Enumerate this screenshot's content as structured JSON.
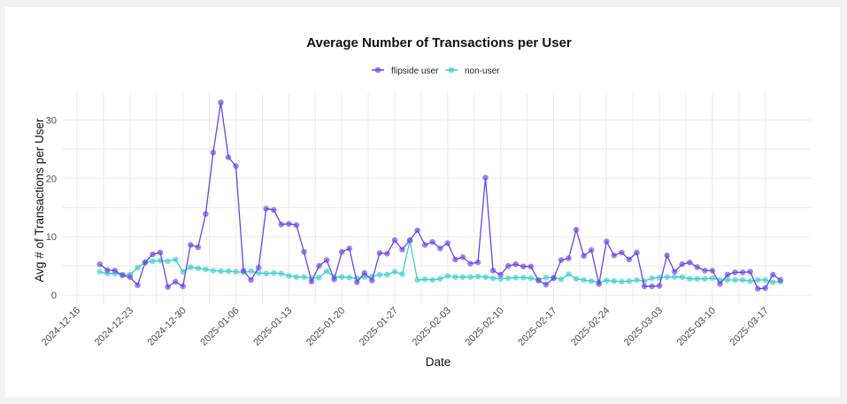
{
  "chart_data": {
    "type": "line",
    "title": "Average Number of Transactions per User",
    "xlabel": "Date",
    "ylabel": "Avg # of Transactions per User",
    "x_start": "2024-12-19",
    "x_step_days": 1,
    "xlim": [
      "2024-12-14",
      "2025-03-23"
    ],
    "ylim": [
      -1.5,
      34.6
    ],
    "grid": true,
    "legend_position": "top",
    "x_ticks": [
      "2024-12-16",
      "2024-12-23",
      "2024-12-30",
      "2025-01-06",
      "2025-01-13",
      "2025-01-20",
      "2025-01-27",
      "2025-02-03",
      "2025-02-10",
      "2025-02-17",
      "2025-02-24",
      "2025-03-03",
      "2025-03-10",
      "2025-03-17"
    ],
    "y_ticks": [
      "0",
      "10",
      "20",
      "30"
    ],
    "series": [
      {
        "name": "flipside user",
        "color": "#6c44e6",
        "values": [
          5.3,
          4.3,
          4.2,
          3.4,
          3.1,
          1.7,
          5.6,
          7.0,
          7.3,
          1.4,
          2.3,
          1.5,
          8.6,
          8.2,
          13.9,
          24.4,
          33.0,
          23.6,
          22.1,
          4.2,
          2.6,
          4.7,
          14.8,
          14.6,
          12.1,
          12.2,
          12.0,
          7.4,
          2.3,
          5.0,
          6.0,
          2.7,
          7.4,
          8.0,
          2.2,
          3.8,
          2.5,
          7.2,
          7.1,
          9.4,
          7.8,
          9.4,
          11.1,
          8.6,
          9.1,
          8.0,
          8.9,
          6.1,
          6.5,
          5.4,
          5.6,
          20.1,
          4.2,
          3.5,
          5.0,
          5.3,
          4.9,
          4.9,
          2.5,
          1.8,
          2.9,
          6.0,
          6.3,
          11.2,
          6.7,
          7.7,
          1.9,
          9.2,
          6.8,
          7.3,
          6.1,
          7.3,
          1.5,
          1.5,
          1.6,
          6.8,
          4.0,
          5.3,
          5.6,
          4.8,
          4.2,
          4.2,
          1.9,
          3.5,
          3.9,
          3.9,
          4.0,
          1.1,
          1.2,
          3.5,
          2.6
        ]
      },
      {
        "name": "non-user",
        "color": "#3ccfcf",
        "values": [
          4.0,
          3.7,
          3.7,
          3.5,
          3.5,
          4.7,
          5.6,
          5.8,
          5.9,
          5.8,
          6.1,
          4.0,
          4.8,
          4.6,
          4.4,
          4.2,
          4.1,
          4.1,
          4.0,
          3.9,
          4.1,
          3.8,
          3.7,
          3.8,
          3.7,
          3.3,
          3.1,
          3.1,
          2.9,
          3.0,
          4.1,
          3.1,
          3.1,
          3.0,
          2.9,
          3.1,
          3.2,
          3.5,
          3.5,
          4.0,
          3.6,
          9.3,
          2.6,
          2.7,
          2.6,
          2.8,
          3.3,
          3.1,
          3.1,
          3.1,
          3.2,
          3.1,
          2.9,
          2.8,
          2.9,
          3.0,
          3.0,
          2.9,
          2.6,
          3.0,
          3.0,
          2.7,
          3.6,
          2.8,
          2.6,
          2.4,
          2.2,
          2.5,
          2.4,
          2.3,
          2.4,
          2.6,
          2.4,
          2.9,
          3.0,
          3.1,
          3.1,
          3.1,
          2.8,
          2.8,
          2.8,
          2.9,
          2.6,
          2.6,
          2.6,
          2.6,
          2.4,
          2.6,
          2.6,
          2.2,
          2.3
        ]
      }
    ]
  }
}
